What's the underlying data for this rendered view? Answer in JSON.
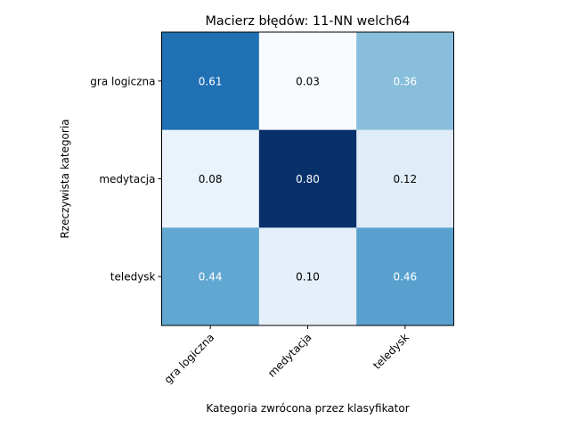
{
  "chart_data": {
    "type": "heatmap",
    "title": "Macierz błędów: 11-NN welch64",
    "xlabel": "Kategoria zwrócona przez klasyfikator",
    "ylabel": "Rzeczywista kategoria",
    "x_categories": [
      "gra logiczna",
      "medytacja",
      "teledysk"
    ],
    "y_categories": [
      "gra logiczna",
      "medytacja",
      "teledysk"
    ],
    "values": [
      [
        0.61,
        0.03,
        0.36
      ],
      [
        0.08,
        0.8,
        0.12
      ],
      [
        0.44,
        0.1,
        0.46
      ]
    ],
    "cell_labels": [
      [
        "0.61",
        "0.03",
        "0.36"
      ],
      [
        "0.08",
        "0.80",
        "0.12"
      ],
      [
        "0.44",
        "0.10",
        "0.46"
      ]
    ],
    "colormap": "Blues",
    "vmin": 0.03,
    "vmax": 0.8,
    "grid": false
  }
}
